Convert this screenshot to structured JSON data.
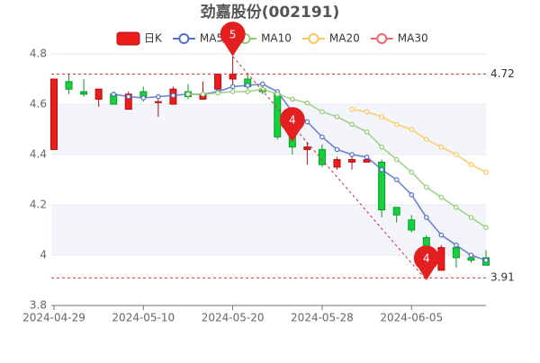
{
  "chart_data": {
    "type": "candlestick",
    "title": "劲嘉股份(002191)",
    "categories": [
      "2024-04-29",
      null,
      null,
      null,
      null,
      null,
      "2024-05-10",
      null,
      null,
      null,
      null,
      null,
      "2024-05-20",
      null,
      null,
      null,
      null,
      null,
      "2024-05-28",
      null,
      null,
      null,
      null,
      null,
      "2024-06-05",
      null,
      null,
      null,
      null,
      null
    ],
    "candles": {
      "name": "日K",
      "up_color": "#eb1c1c",
      "down_color": "#14d13c",
      "open": [
        4.42,
        4.69,
        4.65,
        4.62,
        4.64,
        4.58,
        4.65,
        4.61,
        4.6,
        4.65,
        4.62,
        4.66,
        4.7,
        4.7,
        4.66,
        4.64,
        4.51,
        4.42,
        4.42,
        4.35,
        4.37,
        4.37,
        4.37,
        4.19,
        4.14,
        4.07,
        3.94,
        4.03,
        3.99,
        3.99
      ],
      "close": [
        4.7,
        4.66,
        4.64,
        4.66,
        4.6,
        4.64,
        4.63,
        4.61,
        4.66,
        4.63,
        4.64,
        4.72,
        4.72,
        4.67,
        4.65,
        4.47,
        4.43,
        4.43,
        4.36,
        4.38,
        4.38,
        4.38,
        4.18,
        4.16,
        4.1,
        4.0,
        4.03,
        3.99,
        3.98,
        3.96
      ],
      "high": [
        4.7,
        4.72,
        4.7,
        4.66,
        4.65,
        4.65,
        4.67,
        4.62,
        4.67,
        4.68,
        4.69,
        4.72,
        4.79,
        4.72,
        4.69,
        4.65,
        4.55,
        4.45,
        4.44,
        4.39,
        4.4,
        4.39,
        4.38,
        4.19,
        4.16,
        4.08,
        4.04,
        4.04,
        4.0,
        4.02
      ],
      "low": [
        4.42,
        4.64,
        4.63,
        4.59,
        4.6,
        4.58,
        4.61,
        4.55,
        4.6,
        4.62,
        4.62,
        4.65,
        4.66,
        4.66,
        4.64,
        4.46,
        4.4,
        4.36,
        4.35,
        4.34,
        4.34,
        4.37,
        4.15,
        4.13,
        4.09,
        3.91,
        3.94,
        3.95,
        3.97,
        3.96
      ]
    },
    "series": [
      {
        "name": "MA5",
        "color": "#5470c6",
        "values": [
          null,
          null,
          null,
          null,
          4.64,
          4.63,
          4.625,
          4.63,
          4.635,
          4.64,
          4.64,
          4.65,
          4.67,
          4.675,
          4.68,
          4.65,
          4.57,
          4.53,
          4.47,
          4.42,
          4.4,
          4.39,
          4.34,
          4.3,
          4.24,
          4.15,
          4.08,
          4.04,
          4.0,
          3.98
        ]
      },
      {
        "name": "MA10",
        "color": "#91cc75",
        "values": [
          null,
          null,
          null,
          null,
          null,
          null,
          null,
          null,
          null,
          4.64,
          4.64,
          4.645,
          4.65,
          4.65,
          4.66,
          4.64,
          4.62,
          4.605,
          4.57,
          4.55,
          4.52,
          4.49,
          4.43,
          4.38,
          4.33,
          4.27,
          4.23,
          4.19,
          4.15,
          4.11
        ]
      },
      {
        "name": "MA20",
        "color": "#fac858",
        "values": [
          null,
          null,
          null,
          null,
          null,
          null,
          null,
          null,
          null,
          null,
          null,
          null,
          null,
          null,
          null,
          null,
          null,
          null,
          null,
          null,
          4.58,
          4.57,
          4.55,
          4.52,
          4.5,
          4.46,
          4.43,
          4.4,
          4.36,
          4.33
        ]
      },
      {
        "name": "MA30",
        "color": "#ee6666",
        "values": [
          null,
          null,
          null,
          null,
          null,
          null,
          null,
          null,
          null,
          null,
          null,
          null,
          null,
          null,
          null,
          null,
          null,
          null,
          null,
          null,
          null,
          null,
          null,
          null,
          null,
          null,
          null,
          null,
          null,
          null
        ]
      }
    ],
    "hlines": [
      4.72,
      3.91
    ],
    "markers": [
      {
        "label": "5",
        "at": 12,
        "value": 4.79
      },
      {
        "label": "4",
        "at": 16,
        "value": 4.45
      },
      {
        "label": "4",
        "at": 25,
        "value": 3.9
      }
    ],
    "marker_color": "#e3201f",
    "ylim": [
      3.8,
      4.8
    ],
    "yticks": [
      3.8,
      4,
      4.2,
      4.4,
      4.6,
      4.8
    ],
    "split_area": true
  }
}
